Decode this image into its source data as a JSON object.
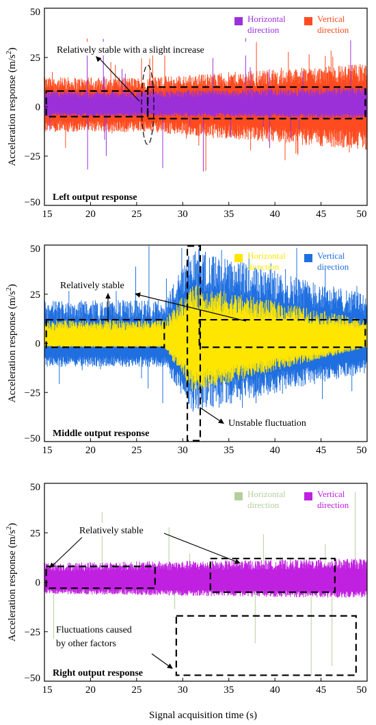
{
  "figure": {
    "xlabel": "Signal acquisition time (s)",
    "ylabel_main": "Acceleration response (m/s",
    "ylabel_sup": "2",
    "ylabel_close": ")"
  },
  "chart_data": [
    {
      "type": "line",
      "title": "Left output response",
      "xlim": [
        15,
        50
      ],
      "ylim": [
        -50,
        50
      ],
      "xticks": [
        "15",
        "20",
        "25",
        "30",
        "35",
        "40",
        "45",
        "50"
      ],
      "yticks": [
        "50",
        "25",
        "0",
        "−25",
        "−50"
      ],
      "grid": false,
      "legend_position": "top-right",
      "series": [
        {
          "name": "Horizontal direction",
          "name_lines": [
            "Horizontal",
            "direction"
          ],
          "color": "#9b30d9",
          "x": [
            15,
            26.2,
            50
          ],
          "upper_envelope": [
            8,
            8,
            10
          ],
          "lower_envelope": [
            -5,
            -5,
            -6
          ],
          "peak_range": [
            -33,
            35
          ]
        },
        {
          "name": "Vertical direction",
          "name_lines": [
            "Vertical",
            "direction"
          ],
          "color": "#ff4b1f",
          "x": [
            15,
            26.2,
            50
          ],
          "upper_envelope": [
            15,
            15,
            22
          ],
          "lower_envelope": [
            -13,
            -13,
            -22
          ],
          "peak_range": [
            -33,
            35
          ]
        }
      ],
      "annotations": [
        {
          "text": "Relatively stable with a slight increase"
        }
      ]
    },
    {
      "type": "line",
      "title": "Middle output response",
      "xlim": [
        15,
        50
      ],
      "ylim": [
        -50,
        50
      ],
      "xticks": [
        "15",
        "20",
        "25",
        "30",
        "35",
        "40",
        "45",
        "50"
      ],
      "yticks": [
        "50",
        "25",
        "0",
        "−25",
        "−50"
      ],
      "grid": false,
      "legend_position": "top-right",
      "series": [
        {
          "name": "Horizontal direction",
          "name_lines": [
            "Horizontal",
            "direction"
          ],
          "color": "#ffe600",
          "x": [
            15,
            28,
            31,
            50
          ],
          "upper_envelope": [
            12,
            12,
            30,
            12
          ],
          "lower_envelope": [
            -2,
            -2,
            -25,
            -2
          ]
        },
        {
          "name": "Vertical direction",
          "name_lines": [
            "Vertical",
            "direction"
          ],
          "color": "#1f6fe0",
          "x": [
            15,
            28,
            31,
            50
          ],
          "upper_envelope": [
            22,
            22,
            48,
            25
          ],
          "lower_envelope": [
            -12,
            -12,
            -35,
            -15
          ],
          "peak_range": [
            -33,
            50
          ]
        }
      ],
      "annotations": [
        {
          "text": "Relatively stable"
        },
        {
          "text": "Unstable fluctuation"
        }
      ]
    },
    {
      "type": "line",
      "title": "Right output response",
      "xlim": [
        15,
        50
      ],
      "ylim": [
        -50,
        50
      ],
      "xticks": [
        "15",
        "20",
        "25",
        "30",
        "35",
        "40",
        "45",
        "50"
      ],
      "yticks": [
        "50",
        "25",
        "0",
        "−25",
        "−50"
      ],
      "grid": false,
      "legend_position": "top-right",
      "series": [
        {
          "name": "Horizontal direction",
          "name_lines": [
            "Horizontal",
            "direction"
          ],
          "color": "#b5cf9c",
          "x": [
            15,
            50
          ],
          "upper_envelope": [
            6,
            6
          ],
          "lower_envelope": [
            -3,
            -3
          ],
          "peak_range": [
            -50,
            50
          ]
        },
        {
          "name": "Vertical direction",
          "name_lines": [
            "Vertical",
            "direction"
          ],
          "color": "#c020e0",
          "x": [
            15,
            50
          ],
          "upper_envelope": [
            10,
            12
          ],
          "lower_envelope": [
            -6,
            -8
          ]
        }
      ],
      "annotations": [
        {
          "text": "Relatively stable"
        },
        {
          "text": "Fluctuations caused",
          "text2": "by other factors"
        }
      ]
    }
  ]
}
